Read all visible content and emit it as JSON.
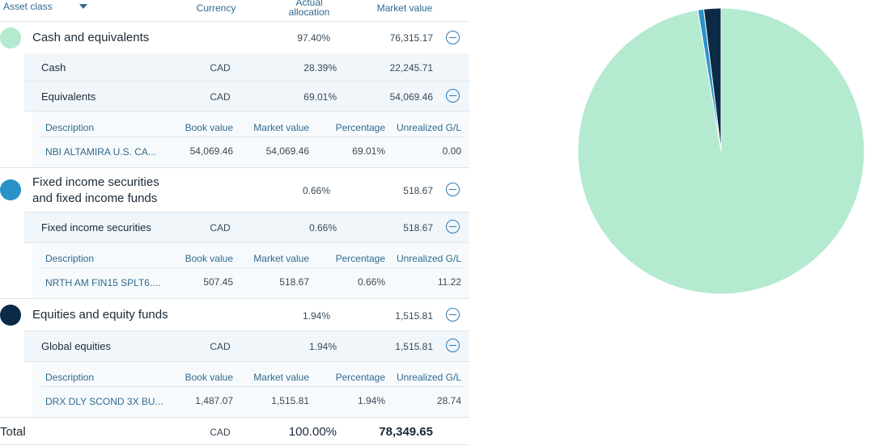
{
  "header": {
    "asset_class": "Asset class",
    "currency": "Currency",
    "actual_allocation_line1": "Actual",
    "actual_allocation_line2": "allocation",
    "market_value": "Market value"
  },
  "colors": {
    "cash": "#b3ead0",
    "fixed_income": "#2a92c9",
    "equities": "#0b2a45",
    "accent": "#2e7bb5"
  },
  "groups": [
    {
      "name": "Cash and equivalents",
      "allocation": "97.40%",
      "market_value": "76,315.17",
      "subs": [
        {
          "name": "Cash",
          "currency": "CAD",
          "allocation": "28.39%",
          "market_value": "22,245.71"
        },
        {
          "name": "Equivalents",
          "currency": "CAD",
          "allocation": "69.01%",
          "market_value": "54,069.46"
        }
      ],
      "holdings": {
        "headers": [
          "Description",
          "Book value",
          "Market value",
          "Percentage",
          "Unrealized G/L"
        ],
        "row": [
          "NBI ALTAMIRA U.S. CA...",
          "54,069.46",
          "54,069.46",
          "69.01%",
          "0.00"
        ]
      }
    },
    {
      "name_line1": "Fixed income securities",
      "name_line2": "and fixed income funds",
      "allocation": "0.66%",
      "market_value": "518.67",
      "subs": [
        {
          "name": "Fixed income securities",
          "currency": "CAD",
          "allocation": "0.66%",
          "market_value": "518.67"
        }
      ],
      "holdings": {
        "headers": [
          "Description",
          "Book value",
          "Market value",
          "Percentage",
          "Unrealized G/L"
        ],
        "row": [
          "NRTH AM FIN15 SPLT6....",
          "507.45",
          "518.67",
          "0.66%",
          "11.22"
        ]
      }
    },
    {
      "name": "Equities and equity funds",
      "allocation": "1.94%",
      "market_value": "1,515.81",
      "subs": [
        {
          "name": "Global equities",
          "currency": "CAD",
          "allocation": "1.94%",
          "market_value": "1,515.81"
        }
      ],
      "holdings": {
        "headers": [
          "Description",
          "Book value",
          "Market value",
          "Percentage",
          "Unrealized G/L"
        ],
        "row": [
          "DRX DLY SCOND 3X BU...",
          "1,487.07",
          "1,515.81",
          "1.94%",
          "28.74"
        ]
      }
    }
  ],
  "total": {
    "label": "Total",
    "currency": "CAD",
    "allocation": "100.00%",
    "market_value": "78,349.65"
  },
  "chart_data": {
    "type": "pie",
    "slices": [
      {
        "label": "Cash and equivalents",
        "value": 97.4,
        "color": "#b3ead0"
      },
      {
        "label": "Fixed income securities and fixed income funds",
        "value": 0.66,
        "color": "#2a92c9"
      },
      {
        "label": "Equities and equity funds",
        "value": 1.94,
        "color": "#0b2a45"
      }
    ]
  }
}
